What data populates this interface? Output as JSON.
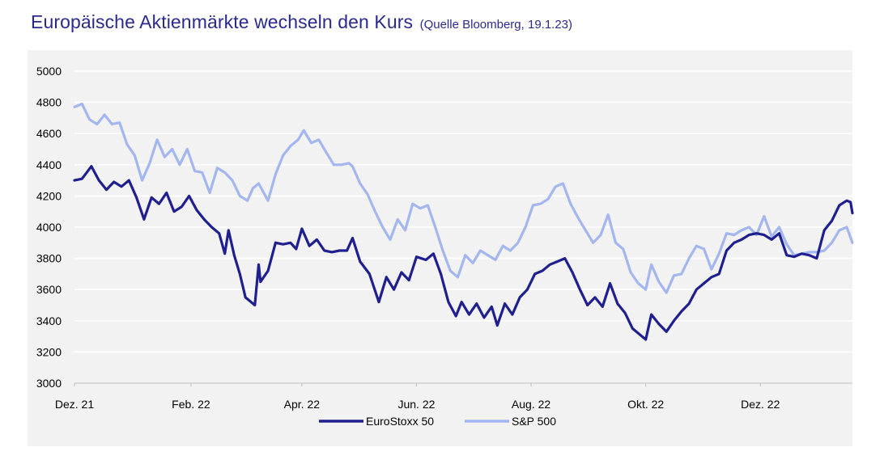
{
  "title": "Europäische Aktienmärkte wechseln den Kurs",
  "source_note": "(Quelle Bloomberg, 19.1.23)",
  "chart_data": {
    "type": "line",
    "title": "Europäische Aktienmärkte wechseln den Kurs",
    "subtitle": "(Quelle Bloomberg, 19.1.23)",
    "xlabel": "",
    "ylabel": "",
    "x_start": "2021-12-01",
    "x_end": "2023-01-19",
    "xticks": [
      {
        "label": "Dez. 21",
        "date": "2021-12-01"
      },
      {
        "label": "Feb. 22",
        "date": "2022-02-01"
      },
      {
        "label": "Apr. 22",
        "date": "2022-04-01"
      },
      {
        "label": "Jun. 22",
        "date": "2022-06-01"
      },
      {
        "label": "Aug. 22",
        "date": "2022-08-01"
      },
      {
        "label": "Okt. 22",
        "date": "2022-10-01"
      },
      {
        "label": "Dez. 22",
        "date": "2022-12-01"
      }
    ],
    "yticks": [
      3000,
      3200,
      3400,
      3600,
      3800,
      4000,
      4200,
      4400,
      4600,
      4800,
      5000
    ],
    "ylim": [
      3000,
      5000
    ],
    "grid": true,
    "legend_position": "bottom",
    "series": [
      {
        "name": "EuroStoxx 50",
        "color": "#1f1f8f",
        "points": [
          [
            "2021-12-01",
            4300
          ],
          [
            "2021-12-05",
            4310
          ],
          [
            "2021-12-10",
            4390
          ],
          [
            "2021-12-14",
            4300
          ],
          [
            "2021-12-18",
            4240
          ],
          [
            "2021-12-22",
            4290
          ],
          [
            "2021-12-26",
            4260
          ],
          [
            "2021-12-30",
            4300
          ],
          [
            "2022-01-03",
            4190
          ],
          [
            "2022-01-07",
            4050
          ],
          [
            "2022-01-11",
            4190
          ],
          [
            "2022-01-15",
            4150
          ],
          [
            "2022-01-19",
            4220
          ],
          [
            "2022-01-23",
            4100
          ],
          [
            "2022-01-27",
            4130
          ],
          [
            "2022-01-31",
            4200
          ],
          [
            "2022-02-04",
            4110
          ],
          [
            "2022-02-08",
            4050
          ],
          [
            "2022-02-12",
            4000
          ],
          [
            "2022-02-16",
            3960
          ],
          [
            "2022-02-19",
            3830
          ],
          [
            "2022-02-21",
            3980
          ],
          [
            "2022-02-24",
            3820
          ],
          [
            "2022-02-27",
            3700
          ],
          [
            "2022-03-02",
            3550
          ],
          [
            "2022-03-07",
            3500
          ],
          [
            "2022-03-09",
            3760
          ],
          [
            "2022-03-10",
            3650
          ],
          [
            "2022-03-14",
            3720
          ],
          [
            "2022-03-18",
            3900
          ],
          [
            "2022-03-22",
            3890
          ],
          [
            "2022-03-26",
            3900
          ],
          [
            "2022-03-29",
            3860
          ],
          [
            "2022-04-01",
            3990
          ],
          [
            "2022-04-05",
            3880
          ],
          [
            "2022-04-09",
            3920
          ],
          [
            "2022-04-13",
            3850
          ],
          [
            "2022-04-17",
            3840
          ],
          [
            "2022-04-21",
            3850
          ],
          [
            "2022-04-25",
            3850
          ],
          [
            "2022-04-28",
            3930
          ],
          [
            "2022-05-02",
            3780
          ],
          [
            "2022-05-07",
            3700
          ],
          [
            "2022-05-12",
            3520
          ],
          [
            "2022-05-16",
            3680
          ],
          [
            "2022-05-20",
            3600
          ],
          [
            "2022-05-24",
            3710
          ],
          [
            "2022-05-28",
            3660
          ],
          [
            "2022-06-01",
            3810
          ],
          [
            "2022-06-06",
            3790
          ],
          [
            "2022-06-10",
            3830
          ],
          [
            "2022-06-14",
            3700
          ],
          [
            "2022-06-18",
            3520
          ],
          [
            "2022-06-22",
            3430
          ],
          [
            "2022-06-25",
            3520
          ],
          [
            "2022-06-29",
            3440
          ],
          [
            "2022-07-03",
            3510
          ],
          [
            "2022-07-07",
            3420
          ],
          [
            "2022-07-11",
            3490
          ],
          [
            "2022-07-14",
            3370
          ],
          [
            "2022-07-18",
            3510
          ],
          [
            "2022-07-22",
            3440
          ],
          [
            "2022-07-26",
            3550
          ],
          [
            "2022-07-30",
            3600
          ],
          [
            "2022-08-03",
            3700
          ],
          [
            "2022-08-07",
            3720
          ],
          [
            "2022-08-11",
            3760
          ],
          [
            "2022-08-15",
            3780
          ],
          [
            "2022-08-19",
            3800
          ],
          [
            "2022-08-23",
            3710
          ],
          [
            "2022-08-27",
            3600
          ],
          [
            "2022-08-31",
            3500
          ],
          [
            "2022-09-04",
            3550
          ],
          [
            "2022-09-08",
            3490
          ],
          [
            "2022-09-12",
            3640
          ],
          [
            "2022-09-16",
            3510
          ],
          [
            "2022-09-20",
            3450
          ],
          [
            "2022-09-24",
            3350
          ],
          [
            "2022-09-28",
            3310
          ],
          [
            "2022-10-01",
            3280
          ],
          [
            "2022-10-04",
            3440
          ],
          [
            "2022-10-08",
            3380
          ],
          [
            "2022-10-12",
            3330
          ],
          [
            "2022-10-16",
            3400
          ],
          [
            "2022-10-20",
            3460
          ],
          [
            "2022-10-24",
            3510
          ],
          [
            "2022-10-28",
            3600
          ],
          [
            "2022-11-01",
            3640
          ],
          [
            "2022-11-05",
            3680
          ],
          [
            "2022-11-09",
            3700
          ],
          [
            "2022-11-13",
            3850
          ],
          [
            "2022-11-17",
            3900
          ],
          [
            "2022-11-21",
            3920
          ],
          [
            "2022-11-25",
            3950
          ],
          [
            "2022-11-29",
            3960
          ],
          [
            "2022-12-03",
            3950
          ],
          [
            "2022-12-07",
            3920
          ],
          [
            "2022-12-11",
            3960
          ],
          [
            "2022-12-15",
            3820
          ],
          [
            "2022-12-19",
            3810
          ],
          [
            "2022-12-23",
            3830
          ],
          [
            "2022-12-27",
            3820
          ],
          [
            "2022-12-31",
            3800
          ],
          [
            "2023-01-04",
            3980
          ],
          [
            "2023-01-08",
            4040
          ],
          [
            "2023-01-12",
            4140
          ],
          [
            "2023-01-16",
            4170
          ],
          [
            "2023-01-18",
            4160
          ],
          [
            "2023-01-19",
            4090
          ]
        ]
      },
      {
        "name": "S&P 500",
        "color": "#a4b6ef",
        "points": [
          [
            "2021-12-01",
            4770
          ],
          [
            "2021-12-05",
            4790
          ],
          [
            "2021-12-09",
            4690
          ],
          [
            "2021-12-13",
            4660
          ],
          [
            "2021-12-17",
            4720
          ],
          [
            "2021-12-21",
            4660
          ],
          [
            "2021-12-25",
            4670
          ],
          [
            "2021-12-29",
            4530
          ],
          [
            "2022-01-02",
            4460
          ],
          [
            "2022-01-06",
            4300
          ],
          [
            "2022-01-10",
            4410
          ],
          [
            "2022-01-14",
            4560
          ],
          [
            "2022-01-18",
            4450
          ],
          [
            "2022-01-22",
            4500
          ],
          [
            "2022-01-26",
            4400
          ],
          [
            "2022-01-30",
            4500
          ],
          [
            "2022-02-03",
            4360
          ],
          [
            "2022-02-07",
            4350
          ],
          [
            "2022-02-11",
            4220
          ],
          [
            "2022-02-15",
            4380
          ],
          [
            "2022-02-19",
            4350
          ],
          [
            "2022-02-23",
            4300
          ],
          [
            "2022-02-27",
            4200
          ],
          [
            "2022-03-03",
            4170
          ],
          [
            "2022-03-06",
            4250
          ],
          [
            "2022-03-09",
            4280
          ],
          [
            "2022-03-14",
            4170
          ],
          [
            "2022-03-18",
            4340
          ],
          [
            "2022-03-22",
            4460
          ],
          [
            "2022-03-26",
            4520
          ],
          [
            "2022-03-30",
            4560
          ],
          [
            "2022-04-02",
            4620
          ],
          [
            "2022-04-06",
            4540
          ],
          [
            "2022-04-10",
            4560
          ],
          [
            "2022-04-14",
            4480
          ],
          [
            "2022-04-18",
            4400
          ],
          [
            "2022-04-22",
            4400
          ],
          [
            "2022-04-26",
            4410
          ],
          [
            "2022-04-28",
            4390
          ],
          [
            "2022-05-02",
            4280
          ],
          [
            "2022-05-06",
            4210
          ],
          [
            "2022-05-10",
            4100
          ],
          [
            "2022-05-14",
            4000
          ],
          [
            "2022-05-18",
            3920
          ],
          [
            "2022-05-22",
            4050
          ],
          [
            "2022-05-26",
            3980
          ],
          [
            "2022-05-30",
            4150
          ],
          [
            "2022-06-03",
            4120
          ],
          [
            "2022-06-07",
            4140
          ],
          [
            "2022-06-11",
            4000
          ],
          [
            "2022-06-15",
            3850
          ],
          [
            "2022-06-19",
            3720
          ],
          [
            "2022-06-23",
            3680
          ],
          [
            "2022-06-27",
            3820
          ],
          [
            "2022-07-01",
            3770
          ],
          [
            "2022-07-05",
            3850
          ],
          [
            "2022-07-09",
            3820
          ],
          [
            "2022-07-13",
            3790
          ],
          [
            "2022-07-17",
            3880
          ],
          [
            "2022-07-21",
            3850
          ],
          [
            "2022-07-25",
            3900
          ],
          [
            "2022-07-29",
            4000
          ],
          [
            "2022-08-02",
            4140
          ],
          [
            "2022-08-06",
            4150
          ],
          [
            "2022-08-10",
            4180
          ],
          [
            "2022-08-14",
            4260
          ],
          [
            "2022-08-18",
            4280
          ],
          [
            "2022-08-22",
            4150
          ],
          [
            "2022-08-26",
            4060
          ],
          [
            "2022-08-30",
            3980
          ],
          [
            "2022-09-03",
            3900
          ],
          [
            "2022-09-07",
            3950
          ],
          [
            "2022-09-11",
            4080
          ],
          [
            "2022-09-15",
            3900
          ],
          [
            "2022-09-19",
            3860
          ],
          [
            "2022-09-23",
            3710
          ],
          [
            "2022-09-27",
            3640
          ],
          [
            "2022-10-01",
            3600
          ],
          [
            "2022-10-04",
            3760
          ],
          [
            "2022-10-08",
            3650
          ],
          [
            "2022-10-12",
            3580
          ],
          [
            "2022-10-16",
            3690
          ],
          [
            "2022-10-20",
            3700
          ],
          [
            "2022-10-24",
            3800
          ],
          [
            "2022-10-28",
            3880
          ],
          [
            "2022-11-01",
            3860
          ],
          [
            "2022-11-05",
            3730
          ],
          [
            "2022-11-09",
            3830
          ],
          [
            "2022-11-13",
            3960
          ],
          [
            "2022-11-17",
            3950
          ],
          [
            "2022-11-21",
            3980
          ],
          [
            "2022-11-25",
            4000
          ],
          [
            "2022-11-29",
            3950
          ],
          [
            "2022-12-03",
            4070
          ],
          [
            "2022-12-07",
            3940
          ],
          [
            "2022-12-11",
            4000
          ],
          [
            "2022-12-15",
            3890
          ],
          [
            "2022-12-19",
            3820
          ],
          [
            "2022-12-23",
            3830
          ],
          [
            "2022-12-27",
            3840
          ],
          [
            "2022-12-31",
            3840
          ],
          [
            "2023-01-04",
            3850
          ],
          [
            "2023-01-08",
            3900
          ],
          [
            "2023-01-12",
            3980
          ],
          [
            "2023-01-16",
            4000
          ],
          [
            "2023-01-19",
            3900
          ]
        ]
      }
    ]
  }
}
